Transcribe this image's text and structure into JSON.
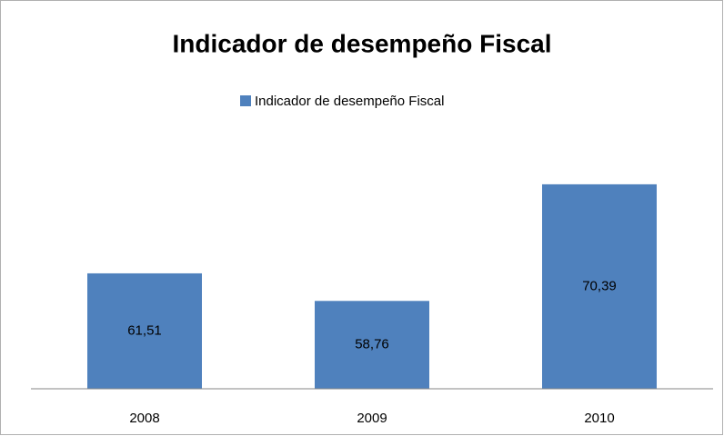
{
  "chart_data": {
    "type": "bar",
    "title": "Indicador de desempeño Fiscal",
    "categories": [
      "2008",
      "2009",
      "2010"
    ],
    "series": [
      {
        "name": "Indicador de desempeño Fiscal",
        "color": "#4f81bd",
        "values": [
          61.51,
          58.76,
          70.39
        ],
        "value_labels": [
          "61,51",
          "58,76",
          "70,39"
        ]
      }
    ],
    "ylim": [
      50,
      75
    ],
    "legend": "top"
  }
}
